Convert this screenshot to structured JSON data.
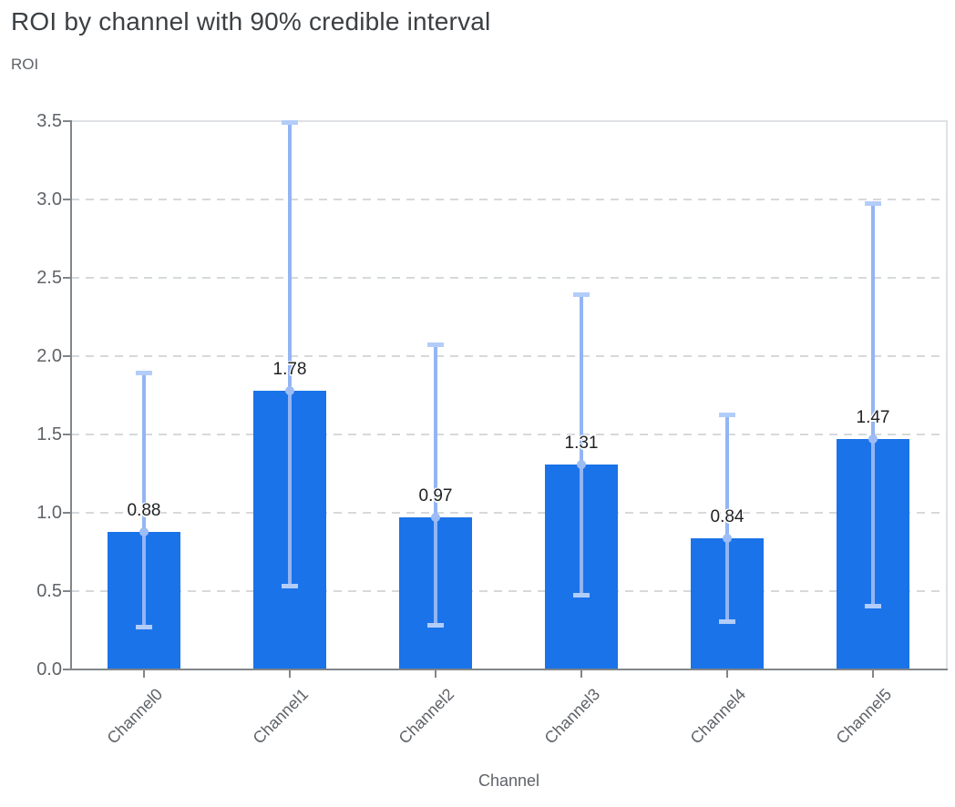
{
  "title": "ROI by channel with 90% credible interval",
  "chart_data": {
    "type": "bar",
    "title": "ROI by channel with 90% credible interval",
    "ylabel": "ROI",
    "xlabel": "Channel",
    "categories": [
      "Channel0",
      "Channel1",
      "Channel2",
      "Channel3",
      "Channel4",
      "Channel5"
    ],
    "values": [
      0.88,
      1.78,
      0.97,
      1.31,
      0.84,
      1.47
    ],
    "data_labels": [
      "0.88",
      "1.78",
      "0.97",
      "1.31",
      "0.84",
      "1.47"
    ],
    "error_low": [
      0.27,
      0.53,
      0.28,
      0.47,
      0.3,
      0.4
    ],
    "error_high": [
      1.89,
      3.49,
      2.07,
      2.39,
      1.62,
      2.97
    ],
    "error_bar_meaning": "90% credible interval",
    "ylim": [
      0,
      3.5
    ],
    "yticks": [
      0.0,
      0.5,
      1.0,
      1.5,
      2.0,
      2.5,
      3.0,
      3.5
    ],
    "ytick_labels": [
      "0.0",
      "0.5",
      "1.0",
      "1.5",
      "2.0",
      "2.5",
      "3.0",
      "3.5"
    ],
    "grid": "horizontal dashed",
    "legend": "none",
    "colors": {
      "bar": "#1a73e8",
      "error_line": "#93b5f4",
      "error_cap": "#b3cdfa",
      "mean_marker": "#9dbcf5",
      "gridline": "#d6d9dc",
      "plot_border": "#dfe1e5",
      "axis_line": "#80868b",
      "title_text": "#3c4043",
      "axis_title_text": "#5f6368",
      "tick_label_text": "#5f6368",
      "value_label_text": "#202124"
    }
  }
}
